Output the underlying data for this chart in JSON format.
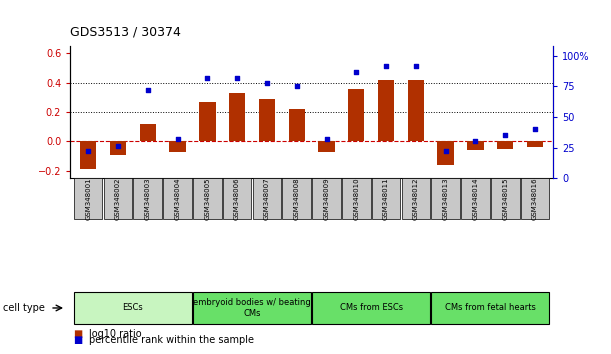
{
  "title": "GDS3513 / 30374",
  "samples": [
    "GSM348001",
    "GSM348002",
    "GSM348003",
    "GSM348004",
    "GSM348005",
    "GSM348006",
    "GSM348007",
    "GSM348008",
    "GSM348009",
    "GSM348010",
    "GSM348011",
    "GSM348012",
    "GSM348013",
    "GSM348014",
    "GSM348015",
    "GSM348016"
  ],
  "log10_ratio": [
    -0.19,
    -0.09,
    0.12,
    -0.07,
    0.27,
    0.33,
    0.29,
    0.22,
    -0.07,
    0.36,
    0.42,
    0.42,
    -0.16,
    -0.06,
    -0.05,
    -0.04
  ],
  "percentile_rank": [
    22,
    26,
    72,
    32,
    82,
    82,
    78,
    75,
    32,
    87,
    92,
    92,
    22,
    30,
    35,
    40
  ],
  "ylim_left": [
    -0.25,
    0.65
  ],
  "ylim_right": [
    0,
    108.0
  ],
  "yticks_left": [
    -0.2,
    0.0,
    0.2,
    0.4,
    0.6
  ],
  "yticks_right": [
    0,
    25,
    50,
    75,
    100
  ],
  "ytick_labels_right": [
    "0",
    "25",
    "50",
    "75",
    "100%"
  ],
  "cell_types": [
    {
      "label": "ESCs",
      "start": 0,
      "end": 3,
      "color": "#c8f5c0"
    },
    {
      "label": "embryoid bodies w/ beating\nCMs",
      "start": 4,
      "end": 7,
      "color": "#68e068"
    },
    {
      "label": "CMs from ESCs",
      "start": 8,
      "end": 11,
      "color": "#68e068"
    },
    {
      "label": "CMs from fetal hearts",
      "start": 12,
      "end": 15,
      "color": "#68e068"
    }
  ],
  "bar_color": "#b03000",
  "dot_color": "#0000cc",
  "zero_line_color": "#cc0000",
  "dotted_line_color": "#000000",
  "bg_color": "#ffffff",
  "plot_bg_color": "#ffffff",
  "tick_label_color_left": "#cc0000",
  "tick_label_color_right": "#0000cc",
  "sample_bg_color": "#c8c8c8",
  "legend_bar_label": "log10 ratio",
  "legend_dot_label": "percentile rank within the sample"
}
